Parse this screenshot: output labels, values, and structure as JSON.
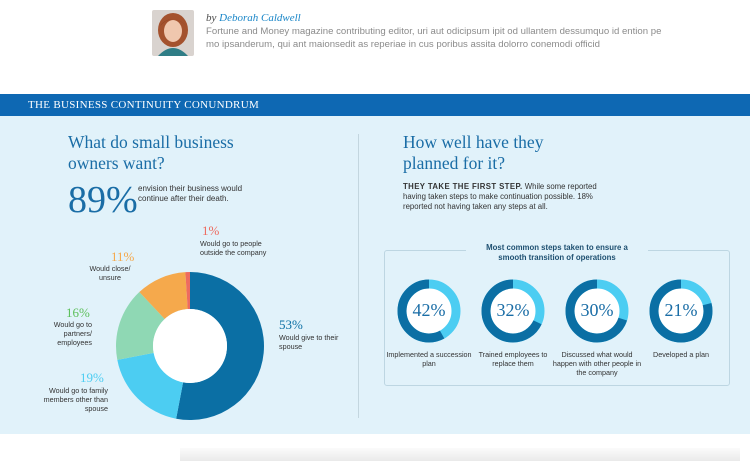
{
  "author": {
    "by_prefix": "by",
    "name": "Deborah Caldwell",
    "bio": "Fortune and Money magazine contributing editor, uri aut odicipsum ipit od ullantem dessumquo id ention pe mo ipsanderum, qui ant maionsedit as reperiae in cus poribus assita dolorro conemodi officid"
  },
  "banner": {
    "title": "THE BUSINESS CONTINUITY CONUNDRUM"
  },
  "left": {
    "heading_line1": "What do small business",
    "heading_line2": "owners want?",
    "big_pct": "89%",
    "big_note": "envision their business would continue after their death."
  },
  "right": {
    "heading_line1": "How well have they",
    "heading_line2": "planned for it?",
    "intro_bold": "THEY TAKE THE FIRST STEP.",
    "intro_text": " While some reported having taken steps to make continuation possible. 18% reported not having taken any steps at all.",
    "steps_title": "Most common steps taken to ensure a smooth transition of operations"
  },
  "colors": {
    "spouse": "#0b6fa4",
    "family": "#4ccdf2",
    "partners": "#8fd8b4",
    "close": "#f5a94c",
    "outside": "#ee6b5f",
    "ring_dark": "#0b6fa4",
    "ring_light": "#4ccdf2"
  },
  "chart_data": [
    {
      "type": "pie",
      "donut": true,
      "slices": [
        {
          "pct_label": "53%",
          "value": 53,
          "label": "Would give to their spouse",
          "color": "#0b6fa4"
        },
        {
          "pct_label": "19%",
          "value": 19,
          "label": "Would go to family members other than spouse",
          "color": "#4ccdf2"
        },
        {
          "pct_label": "16%",
          "value": 16,
          "label": "Would go to partners/ employees",
          "color": "#8fd8b4"
        },
        {
          "pct_label": "11%",
          "value": 11,
          "label": "Would close/ unsure",
          "color": "#f5a94c"
        },
        {
          "pct_label": "1%",
          "value": 1,
          "label": "Would go to people outside the company",
          "color": "#ee6b5f"
        }
      ]
    },
    {
      "type": "pie",
      "donut": true,
      "small_multiples": true,
      "items": [
        {
          "pct_label": "42%",
          "value": 42,
          "label": "Implemented a succession plan"
        },
        {
          "pct_label": "32%",
          "value": 32,
          "label": "Trained employees to replace them"
        },
        {
          "pct_label": "30%",
          "value": 30,
          "label": "Discussed what would happen with other people in the company"
        },
        {
          "pct_label": "21%",
          "value": 21,
          "label": "Developed a plan"
        }
      ]
    }
  ]
}
